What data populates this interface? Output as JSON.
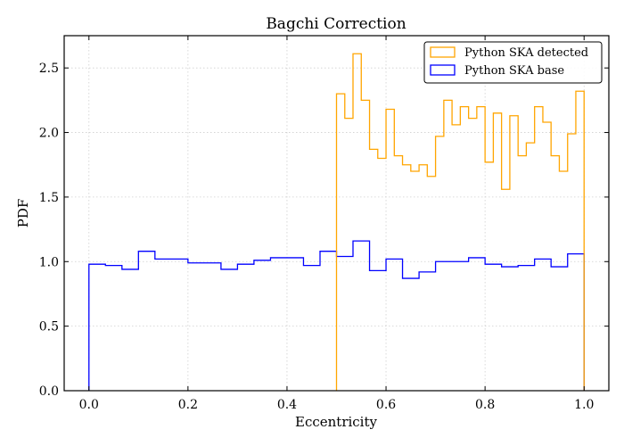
{
  "chart_data": {
    "type": "histogram-step",
    "title": "Bagchi Correction",
    "xlabel": "Eccentricity",
    "ylabel": "PDF",
    "xlim": [
      -0.05,
      1.05
    ],
    "ylim": [
      0.0,
      2.75
    ],
    "xticks": [
      0.0,
      0.2,
      0.4,
      0.6,
      0.8,
      1.0
    ],
    "xtick_labels": [
      "0.0",
      "0.2",
      "0.4",
      "0.6",
      "0.8",
      "1.0"
    ],
    "yticks": [
      0.0,
      0.5,
      1.0,
      1.5,
      2.0,
      2.5
    ],
    "ytick_labels": [
      "0.0",
      "0.5",
      "1.0",
      "1.5",
      "2.0",
      "2.5"
    ],
    "grid": true,
    "legend_position": "top-right",
    "series": [
      {
        "name": "Python SKA detected",
        "color": "#ffa500",
        "bin_edges": [
          0.5,
          0.5167,
          0.5333,
          0.55,
          0.5667,
          0.5833,
          0.6,
          0.6167,
          0.6333,
          0.65,
          0.6667,
          0.6833,
          0.7,
          0.7167,
          0.7333,
          0.75,
          0.7667,
          0.7833,
          0.8,
          0.8167,
          0.8333,
          0.85,
          0.8667,
          0.8833,
          0.9,
          0.9167,
          0.9333,
          0.95,
          0.9667,
          0.9833,
          1.0
        ],
        "values": [
          2.3,
          2.11,
          2.61,
          2.25,
          1.87,
          1.8,
          2.18,
          1.82,
          1.75,
          1.7,
          1.75,
          1.66,
          1.97,
          2.25,
          2.06,
          2.2,
          2.11,
          2.2,
          1.77,
          2.15,
          1.56,
          2.13,
          1.82,
          1.92,
          2.2,
          2.08,
          1.82,
          1.7,
          1.99,
          2.32
        ]
      },
      {
        "name": "Python SKA base",
        "color": "#0000ff",
        "bin_edges": [
          0.0,
          0.0333,
          0.0667,
          0.1,
          0.1333,
          0.1667,
          0.2,
          0.2333,
          0.2667,
          0.3,
          0.3333,
          0.3667,
          0.4,
          0.4333,
          0.4667,
          0.5,
          0.5333,
          0.5667,
          0.6,
          0.6333,
          0.6667,
          0.7,
          0.7333,
          0.7667,
          0.8,
          0.8333,
          0.8667,
          0.9,
          0.9333,
          0.9667,
          1.0
        ],
        "values": [
          0.98,
          0.97,
          0.94,
          1.08,
          1.02,
          1.02,
          0.99,
          0.99,
          0.94,
          0.98,
          1.01,
          1.03,
          1.03,
          0.97,
          1.08,
          1.04,
          1.16,
          0.93,
          1.02,
          0.87,
          0.92,
          1.0,
          1.0,
          1.03,
          0.98,
          0.96,
          0.97,
          1.02,
          0.96,
          1.06
        ]
      }
    ]
  }
}
